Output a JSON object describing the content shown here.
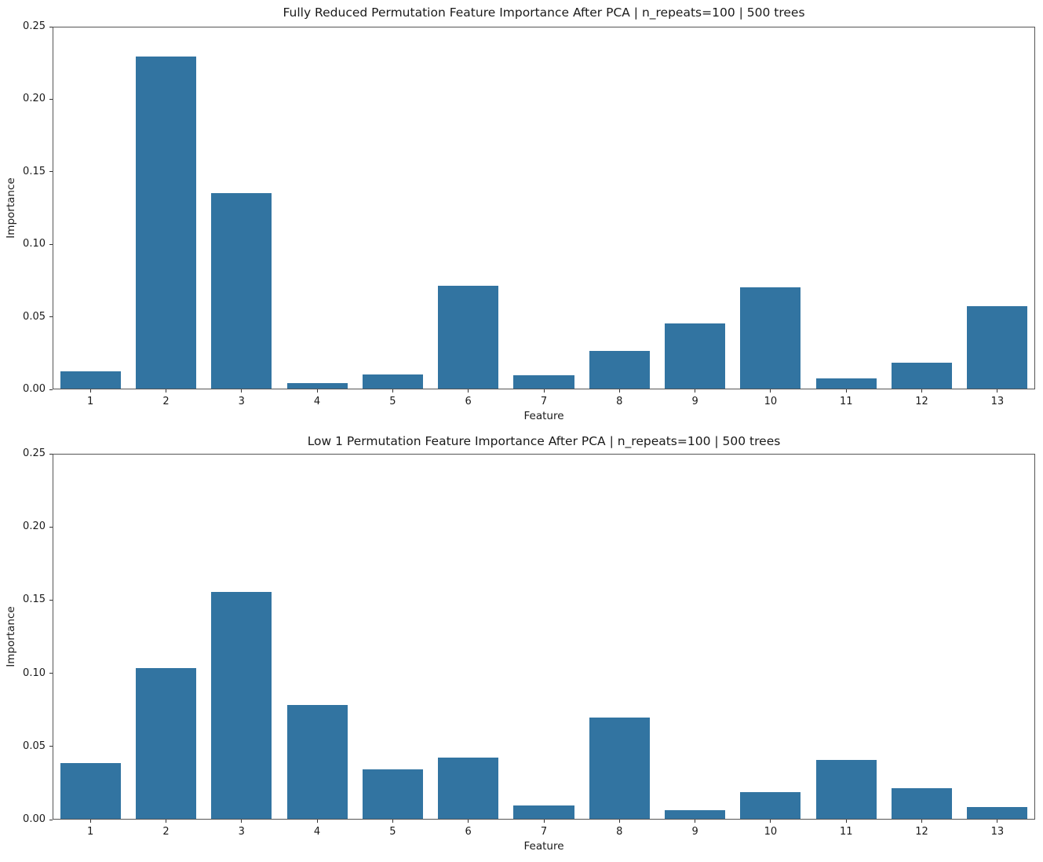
{
  "figure": {
    "background": "#ffffff",
    "bar_color": "#3274a1",
    "spine_color": "#555555",
    "text_color": "#1a1a1a"
  },
  "chart_data": [
    {
      "type": "bar",
      "title": "Fully Reduced Permutation Feature Importance After PCA | n_repeats=100 | 500 trees",
      "xlabel": "Feature",
      "ylabel": "Importance",
      "categories": [
        "1",
        "2",
        "3",
        "4",
        "5",
        "6",
        "7",
        "8",
        "9",
        "10",
        "11",
        "12",
        "13"
      ],
      "values": [
        0.012,
        0.229,
        0.135,
        0.004,
        0.01,
        0.071,
        0.009,
        0.026,
        0.045,
        0.07,
        0.007,
        0.018,
        0.057
      ],
      "ylim": [
        0,
        0.25
      ],
      "yticks": [
        0.0,
        0.05,
        0.1,
        0.15,
        0.2,
        0.25
      ],
      "bar_color": "#3274a1",
      "grid": false,
      "legend": null
    },
    {
      "type": "bar",
      "title": "Low 1 Permutation Feature Importance After PCA | n_repeats=100 | 500 trees",
      "xlabel": "Feature",
      "ylabel": "Importance",
      "categories": [
        "1",
        "2",
        "3",
        "4",
        "5",
        "6",
        "7",
        "8",
        "9",
        "10",
        "11",
        "12",
        "13"
      ],
      "values": [
        0.038,
        0.103,
        0.155,
        0.078,
        0.034,
        0.042,
        0.009,
        0.069,
        0.006,
        0.018,
        0.04,
        0.021,
        0.008
      ],
      "ylim": [
        0,
        0.25
      ],
      "yticks": [
        0.0,
        0.05,
        0.1,
        0.15,
        0.2,
        0.25
      ],
      "bar_color": "#3274a1",
      "grid": false,
      "legend": null
    }
  ]
}
